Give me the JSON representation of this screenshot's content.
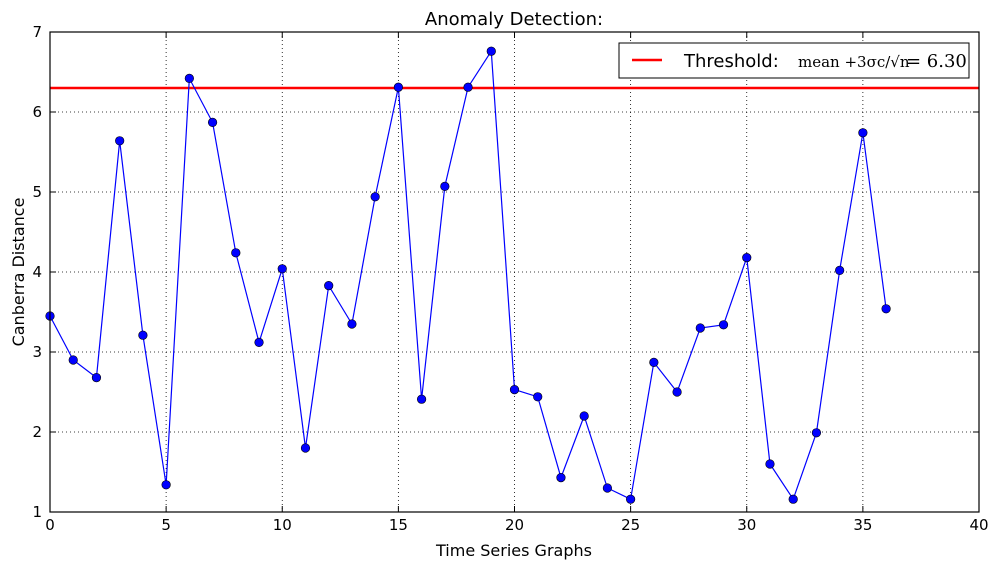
{
  "chart_data": {
    "type": "line",
    "title": "Anomaly Detection:",
    "xlabel": "Time Series Graphs",
    "ylabel": "Canberra Distance",
    "xlim": [
      0,
      40
    ],
    "ylim": [
      1,
      7
    ],
    "x_ticks": [
      "0",
      "5",
      "10",
      "15",
      "20",
      "25",
      "30",
      "35",
      "40"
    ],
    "y_ticks": [
      "1",
      "2",
      "3",
      "4",
      "5",
      "6",
      "7"
    ],
    "grid": true,
    "legend_position": "top-right",
    "series": [
      {
        "color": "#0000ff",
        "marker": "circle",
        "x": [
          0,
          1,
          2,
          3,
          4,
          5,
          6,
          7,
          8,
          9,
          10,
          11,
          12,
          13,
          14,
          15,
          16,
          17,
          18,
          19,
          20,
          21,
          22,
          23,
          24,
          25,
          26,
          27,
          28,
          29,
          30,
          31,
          32,
          33,
          34,
          35,
          36
        ],
        "values": [
          3.45,
          2.9,
          2.68,
          5.64,
          3.21,
          1.34,
          6.42,
          5.87,
          4.24,
          3.12,
          4.04,
          1.8,
          3.83,
          3.35,
          4.94,
          6.31,
          2.41,
          5.07,
          6.31,
          6.76,
          2.53,
          2.44,
          1.43,
          2.2,
          1.3,
          1.16,
          2.87,
          2.5,
          3.3,
          3.34,
          4.18,
          1.6,
          1.16,
          1.99,
          4.02,
          5.74,
          3.54
        ]
      }
    ],
    "threshold": {
      "value": 6.3,
      "color": "#ff0000",
      "legend_label": "Threshold:",
      "legend_formula": "mean +3σc/√n",
      "legend_value": "= 6.30"
    }
  }
}
